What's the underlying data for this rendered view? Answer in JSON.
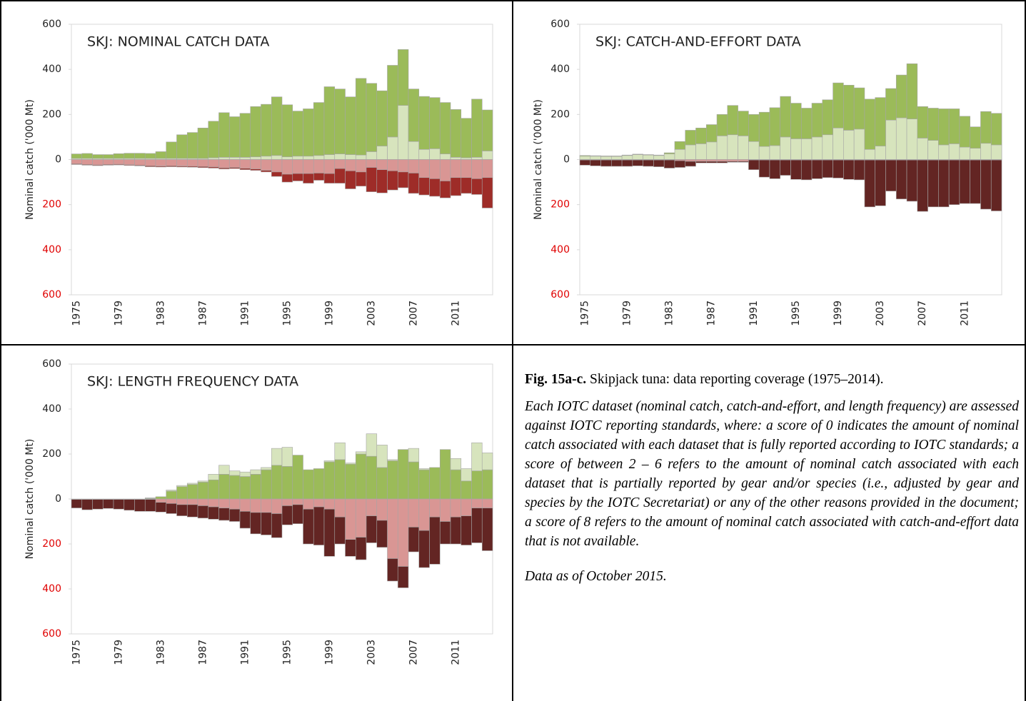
{
  "chart_data": [
    {
      "type": "bar",
      "title": "SKJ: NOMINAL CATCH DATA",
      "y_label": "Nominal catch ('000 Mt)",
      "categories": [
        "1975",
        null,
        null,
        null,
        "1979",
        null,
        null,
        null,
        "1983",
        null,
        null,
        null,
        "1987",
        null,
        null,
        null,
        "1991",
        null,
        null,
        null,
        "1995",
        null,
        null,
        null,
        "1999",
        null,
        null,
        null,
        "2003",
        null,
        null,
        null,
        "2007",
        null,
        null,
        null,
        "2011",
        null,
        null,
        null
      ],
      "series": [
        {
          "color": "#d7e4bd",
          "values": [
            5,
            5,
            5,
            5,
            5,
            5,
            5,
            5,
            5,
            5,
            5,
            5,
            5,
            8,
            10,
            10,
            10,
            12,
            15,
            18,
            12,
            15,
            15,
            18,
            22,
            25,
            22,
            20,
            35,
            60,
            100,
            240,
            80,
            45,
            48,
            25,
            10,
            8,
            10,
            38
          ]
        },
        {
          "color": "#9bbb59",
          "values": [
            20,
            22,
            17,
            17,
            21,
            23,
            23,
            22,
            30,
            73,
            105,
            115,
            135,
            162,
            198,
            180,
            195,
            223,
            230,
            260,
            231,
            200,
            210,
            235,
            301,
            288,
            256,
            340,
            303,
            245,
            318,
            248,
            233,
            235,
            227,
            228,
            212,
            175,
            258,
            182
          ]
        },
        {
          "color": "#d99694",
          "values": [
            -19,
            -22,
            -24,
            -22,
            -21,
            -23,
            -25,
            -28,
            -29,
            -28,
            -29,
            -30,
            -31,
            -33,
            -37,
            -35,
            -39,
            -42,
            -48,
            -55,
            -65,
            -62,
            -62,
            -60,
            -62,
            -40,
            -50,
            -55,
            -35,
            -45,
            -50,
            -55,
            -60,
            -80,
            -85,
            -95,
            -80,
            -80,
            -85,
            -80
          ]
        },
        {
          "color": "#9e2c28",
          "values": [
            -3,
            -3,
            -3,
            -3,
            -3,
            -3,
            -3,
            -4,
            -4,
            -4,
            -4,
            -4,
            -5,
            -5,
            -5,
            -5,
            -6,
            -6,
            -7,
            -20,
            -35,
            -33,
            -43,
            -32,
            -43,
            -65,
            -80,
            -63,
            -108,
            -103,
            -85,
            -70,
            -90,
            -77,
            -78,
            -75,
            -80,
            -70,
            -70,
            -135
          ]
        }
      ],
      "ylim": [
        -600,
        600
      ],
      "yticks": [
        {
          "value": -600,
          "label": "600"
        },
        {
          "value": -400,
          "label": "400"
        },
        {
          "value": -200,
          "label": "200"
        },
        0,
        200,
        400,
        600
      ],
      "negative_tick_color": "#e00000"
    },
    {
      "type": "bar",
      "title": "SKJ: CATCH-AND-EFFORT DATA",
      "y_label": "Nominal catch ('000 Mt)",
      "categories": [
        "1975",
        null,
        null,
        null,
        "1979",
        null,
        null,
        null,
        "1983",
        null,
        null,
        null,
        "1987",
        null,
        null,
        null,
        "1991",
        null,
        null,
        null,
        "1995",
        null,
        null,
        null,
        "1999",
        null,
        null,
        null,
        "2003",
        null,
        null,
        null,
        "2007",
        null,
        null,
        null,
        "2011",
        null,
        null,
        null
      ],
      "series": [
        {
          "color": "#d7e4bd",
          "values": [
            15,
            15,
            14,
            14,
            18,
            22,
            20,
            18,
            25,
            45,
            65,
            70,
            78,
            105,
            110,
            105,
            80,
            58,
            62,
            100,
            92,
            92,
            100,
            110,
            140,
            130,
            135,
            45,
            60,
            175,
            185,
            180,
            95,
            85,
            65,
            70,
            55,
            50,
            72,
            65
          ]
        },
        {
          "color": "#9bbb59",
          "values": [
            3,
            2,
            2,
            2,
            2,
            2,
            2,
            2,
            5,
            35,
            65,
            70,
            77,
            95,
            130,
            110,
            120,
            152,
            168,
            180,
            158,
            136,
            150,
            155,
            200,
            200,
            183,
            223,
            215,
            140,
            190,
            245,
            140,
            143,
            160,
            155,
            137,
            95,
            141,
            140
          ]
        },
        {
          "color": "#d99694",
          "values": [
            -2,
            -2,
            -2,
            -2,
            -2,
            -2,
            -2,
            -2,
            -2,
            -5,
            -8,
            -8,
            -8,
            -8,
            -8,
            -8,
            -2,
            -2,
            -2,
            -2,
            -2,
            -2,
            -2,
            -2,
            -2,
            -2,
            -2,
            -2,
            -2,
            -2,
            -2,
            -2,
            -2,
            -2,
            -2,
            -2,
            -2,
            -2,
            -2,
            -2
          ]
        },
        {
          "color": "#632523",
          "values": [
            -23,
            -26,
            -28,
            -28,
            -28,
            -26,
            -28,
            -30,
            -36,
            -30,
            -22,
            -7,
            -7,
            -7,
            -4,
            -4,
            -43,
            -76,
            -83,
            -68,
            -86,
            -88,
            -83,
            -78,
            -80,
            -86,
            -88,
            -208,
            -203,
            -138,
            -173,
            -183,
            -228,
            -208,
            -208,
            -198,
            -193,
            -193,
            -218,
            -226
          ]
        }
      ],
      "ylim": [
        -600,
        600
      ],
      "yticks": [
        {
          "value": -600,
          "label": "600"
        },
        {
          "value": -400,
          "label": "400"
        },
        {
          "value": -200,
          "label": "200"
        },
        0,
        200,
        400,
        600
      ],
      "negative_tick_color": "#e00000"
    },
    {
      "type": "bar",
      "title": "SKJ: LENGTH FREQUENCY DATA",
      "y_label": "Nominal catch ('000 Mt)",
      "categories": [
        "1975",
        null,
        null,
        null,
        "1979",
        null,
        null,
        null,
        "1983",
        null,
        null,
        null,
        "1987",
        null,
        null,
        null,
        "1991",
        null,
        null,
        null,
        "1995",
        null,
        null,
        null,
        "1999",
        null,
        null,
        null,
        "2003",
        null,
        null,
        null,
        "2007",
        null,
        null,
        null,
        "2011",
        null,
        null,
        null
      ],
      "series": [
        {
          "color": "#9bbb59",
          "values": [
            0,
            0,
            0,
            0,
            0,
            0,
            0,
            3,
            10,
            35,
            55,
            65,
            75,
            85,
            110,
            105,
            100,
            110,
            130,
            150,
            145,
            195,
            130,
            135,
            165,
            175,
            155,
            200,
            190,
            140,
            170,
            220,
            165,
            130,
            140,
            220,
            130,
            80,
            125,
            130
          ]
        },
        {
          "color": "#d7e4bd",
          "values": [
            0,
            0,
            0,
            0,
            0,
            0,
            0,
            2,
            0,
            5,
            5,
            5,
            5,
            25,
            40,
            20,
            20,
            20,
            10,
            75,
            85,
            0,
            0,
            0,
            5,
            75,
            5,
            10,
            100,
            100,
            5,
            0,
            60,
            5,
            0,
            0,
            50,
            55,
            125,
            75
          ]
        },
        {
          "color": "#d99694",
          "values": [
            -2,
            -2,
            -2,
            -2,
            -2,
            -2,
            -2,
            -2,
            -15,
            -20,
            -25,
            -25,
            -30,
            -35,
            -40,
            -45,
            -55,
            -60,
            -60,
            -65,
            -30,
            -25,
            -45,
            -35,
            -45,
            -80,
            -180,
            -170,
            -75,
            -95,
            -265,
            -300,
            -125,
            -140,
            -80,
            -100,
            -80,
            -75,
            -40,
            -40
          ]
        },
        {
          "color": "#632523",
          "values": [
            -38,
            -46,
            -43,
            -40,
            -43,
            -48,
            -53,
            -53,
            -43,
            -45,
            -50,
            -55,
            -55,
            -55,
            -55,
            -55,
            -75,
            -95,
            -100,
            -107,
            -85,
            -85,
            -155,
            -170,
            -210,
            -120,
            -75,
            -100,
            -120,
            -120,
            -100,
            -95,
            -110,
            -165,
            -210,
            -100,
            -120,
            -130,
            -155,
            -190
          ]
        }
      ],
      "ylim": [
        -600,
        600
      ],
      "yticks": [
        {
          "value": -600,
          "label": "600"
        },
        {
          "value": -400,
          "label": "400"
        },
        {
          "value": -200,
          "label": "200"
        },
        0,
        200,
        400,
        600
      ],
      "negative_tick_color": "#e00000"
    }
  ],
  "caption": {
    "label": "Fig. 15a-c.",
    "title": "Skipjack tuna: data reporting coverage (1975–2014).",
    "description": "Each IOTC dataset (nominal catch, catch-and-effort, and length frequency) are assessed against IOTC reporting standards, where: a score of 0 indicates the amount of nominal catch associated with each dataset that is fully reported according to IOTC standards; a score of between 2 – 6 refers to the amount of nominal catch associated with each dataset that is partially reported by gear and/or species (i.e., adjusted by gear and species by the IOTC Secretariat) or any of the other reasons provided in the document; a score of 8 refers to the amount of nominal catch associated with catch-and-effort data that is not available.",
    "note": "Data as of October 2015."
  }
}
